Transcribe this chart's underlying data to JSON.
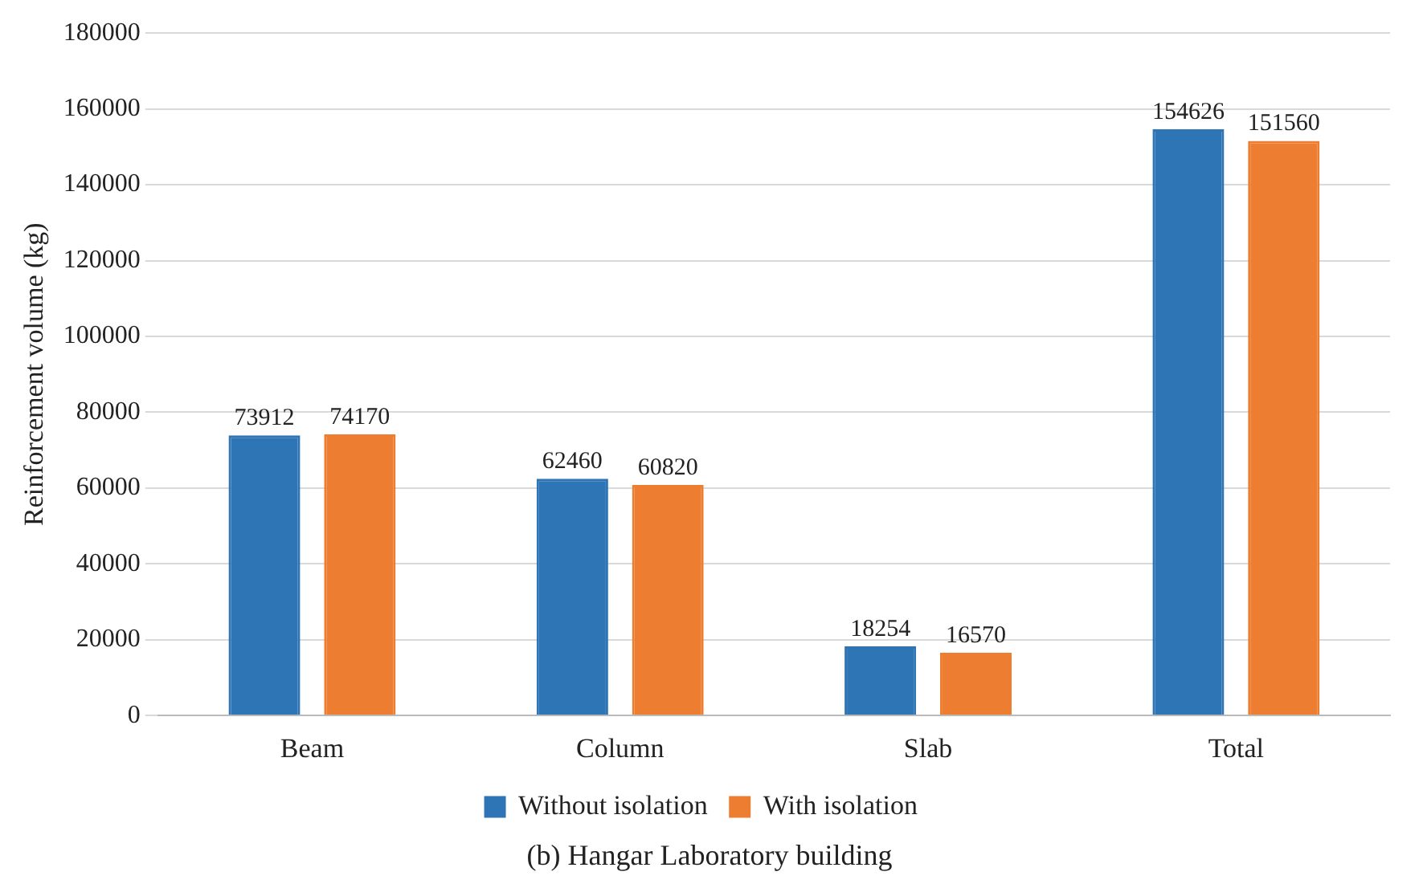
{
  "chart_data": {
    "type": "bar",
    "ylabel": "Reinforcement volume (kg)",
    "categories": [
      "Beam",
      "Column",
      "Slab",
      "Total"
    ],
    "series": [
      {
        "name": "Without isolation",
        "color": "#2e75b6",
        "values": [
          73912,
          62460,
          18254,
          154626
        ]
      },
      {
        "name": "With isolation",
        "color": "#ed7d31",
        "values": [
          74170,
          60820,
          16570,
          151560
        ]
      }
    ],
    "ylim": [
      0,
      180000
    ],
    "yticks": [
      0,
      20000,
      40000,
      60000,
      80000,
      100000,
      120000,
      140000,
      160000,
      180000
    ],
    "grid": "y",
    "legend": "bottom",
    "data_labels": true,
    "annotations": [
      "(b) Hangar Laboratory building"
    ]
  }
}
